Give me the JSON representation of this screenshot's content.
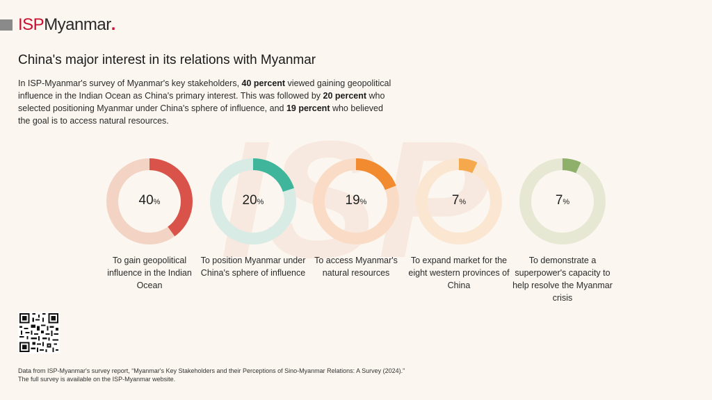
{
  "brand": {
    "isp": "ISP",
    "name": "Myanmar",
    "dot": ".",
    "watermark": "ISP"
  },
  "title": "China's major interest in its relations with Myanmar",
  "intro": {
    "p1": "In ISP-Myanmar's survey of Myanmar's key stakeholders, ",
    "b1": "40 percent",
    "p2": " viewed gaining geopolitical influence in the Indian Ocean as China's primary interest. This was followed by ",
    "b2": "20 percent",
    "p3": " who selected positioning Myanmar under China's sphere of influence, and ",
    "b3": "19 percent",
    "p4": " who believed the goal is to access natural resources."
  },
  "chart_data": {
    "type": "pie",
    "unit": "%",
    "items": [
      {
        "value": 40,
        "value_label": "40",
        "label": "To gain geopolitical influence in the Indian Ocean",
        "color": "#d9534a",
        "track": "#f2d3c4"
      },
      {
        "value": 20,
        "value_label": "20",
        "label": "To position Myanmar under China's sphere of influence",
        "color": "#3fb59c",
        "track": "#d8ebe5"
      },
      {
        "value": 19,
        "value_label": "19",
        "label": "To access Myanmar's natural resources",
        "color": "#f28a30",
        "track": "#fadcc6"
      },
      {
        "value": 7,
        "value_label": "7",
        "label": "To expand market for the eight western provinces of China",
        "color": "#f5a94c",
        "track": "#fbe6d2"
      },
      {
        "value": 7,
        "value_label": "7",
        "label": "To demonstrate a superpower's capacity to help resolve the Myanmar crisis",
        "color": "#8fb06a",
        "track": "#e6e8d4"
      }
    ]
  },
  "source": "Data from ISP-Myanmar's survey report, “Myanmar's Key Stakeholders and their Perceptions of Sino-Myanmar Relations: A Survey (2024).” The full survey is available on the ISP-Myanmar website."
}
